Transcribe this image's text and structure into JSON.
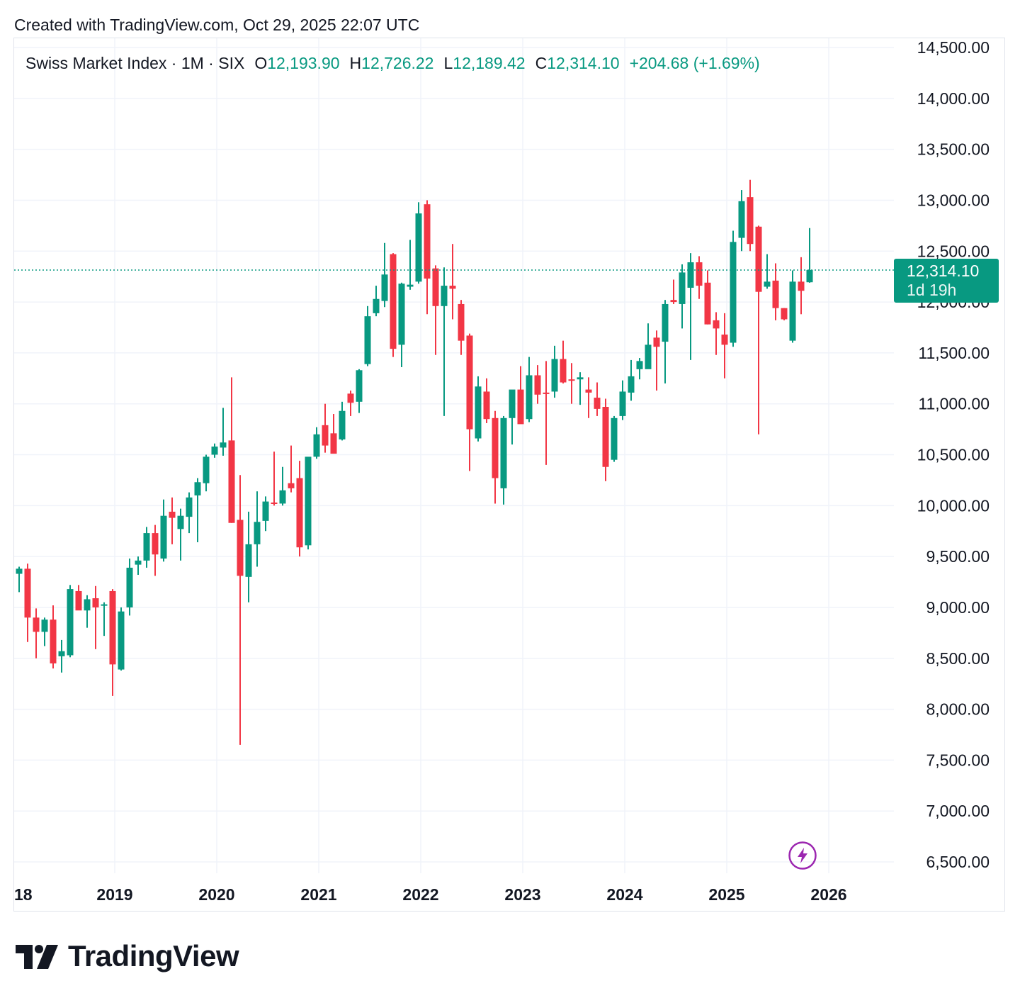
{
  "header": {
    "created_text": "Created with TradingView.com, Oct 29, 2025 22:07 UTC"
  },
  "legend": {
    "symbol": "Swiss Market Index · 1M · SIX",
    "open_label": "O",
    "open_value": "12,193.90",
    "high_label": "H",
    "high_value": "12,726.22",
    "low_label": "L",
    "low_value": "12,189.42",
    "close_label": "C",
    "close_value": "12,314.10",
    "change": "+204.68 (+1.69%)"
  },
  "price_badge": {
    "price": "12,314.10",
    "countdown": "1d 19h"
  },
  "branding": {
    "logo_text": "TradingView"
  },
  "icons": {
    "bolt": "lightning-bolt-icon",
    "logo": "tradingview-logo-icon"
  },
  "colors": {
    "up": "#089981",
    "down": "#f23645",
    "grid": "#f0f3fa",
    "accent": "#9c27b0"
  },
  "chart_data": {
    "type": "candlestick",
    "interval": "1M",
    "y_ticks": [
      "14,500.00",
      "14,000.00",
      "13,500.00",
      "13,000.00",
      "12,500.00",
      "12,000.00",
      "11,500.00",
      "11,000.00",
      "10,500.00",
      "10,000.00",
      "9,500.00",
      "9,000.00",
      "8,500.00",
      "8,000.00",
      "7,500.00",
      "7,000.00",
      "6,500.00"
    ],
    "y_tick_values": [
      14500,
      14000,
      13500,
      13000,
      12500,
      12000,
      11500,
      11000,
      10500,
      10000,
      9500,
      9000,
      8500,
      8000,
      7500,
      7000,
      6500
    ],
    "x_ticks": [
      "18",
      "2019",
      "2020",
      "2021",
      "2022",
      "2023",
      "2024",
      "2025",
      "2026"
    ],
    "ylim": [
      6500,
      14500
    ],
    "last_price": 12314.1,
    "candles": [
      {
        "o": 9330,
        "h": 9400,
        "l": 9150,
        "c": 9380
      },
      {
        "o": 9380,
        "h": 9430,
        "l": 8660,
        "c": 8900
      },
      {
        "o": 8900,
        "h": 8990,
        "l": 8500,
        "c": 8760
      },
      {
        "o": 8760,
        "h": 8900,
        "l": 8620,
        "c": 8880
      },
      {
        "o": 8880,
        "h": 9020,
        "l": 8400,
        "c": 8450
      },
      {
        "o": 8520,
        "h": 8680,
        "l": 8360,
        "c": 8570
      },
      {
        "o": 8530,
        "h": 9220,
        "l": 8510,
        "c": 9180
      },
      {
        "o": 9160,
        "h": 9220,
        "l": 9010,
        "c": 8970
      },
      {
        "o": 8970,
        "h": 9120,
        "l": 8800,
        "c": 9080
      },
      {
        "o": 9090,
        "h": 9210,
        "l": 8590,
        "c": 9000
      },
      {
        "o": 9020,
        "h": 9050,
        "l": 8720,
        "c": 9030
      },
      {
        "o": 9160,
        "h": 9180,
        "l": 8130,
        "c": 8440
      },
      {
        "o": 8390,
        "h": 9000,
        "l": 8380,
        "c": 8960
      },
      {
        "o": 9000,
        "h": 9480,
        "l": 8920,
        "c": 9390
      },
      {
        "o": 9420,
        "h": 9500,
        "l": 9320,
        "c": 9460
      },
      {
        "o": 9460,
        "h": 9790,
        "l": 9390,
        "c": 9730
      },
      {
        "o": 9730,
        "h": 9810,
        "l": 9310,
        "c": 9520
      },
      {
        "o": 9480,
        "h": 10060,
        "l": 9450,
        "c": 9900
      },
      {
        "o": 9940,
        "h": 10080,
        "l": 9620,
        "c": 9880
      },
      {
        "o": 9770,
        "h": 9970,
        "l": 9460,
        "c": 9900
      },
      {
        "o": 9890,
        "h": 10130,
        "l": 9730,
        "c": 10080
      },
      {
        "o": 10100,
        "h": 10270,
        "l": 9640,
        "c": 10230
      },
      {
        "o": 10220,
        "h": 10500,
        "l": 10140,
        "c": 10480
      },
      {
        "o": 10500,
        "h": 10610,
        "l": 10470,
        "c": 10580
      },
      {
        "o": 10570,
        "h": 10960,
        "l": 10490,
        "c": 10620
      },
      {
        "o": 10640,
        "h": 11260,
        "l": 9830,
        "c": 9830
      },
      {
        "o": 9860,
        "h": 10300,
        "l": 7650,
        "c": 9310
      },
      {
        "o": 9300,
        "h": 9940,
        "l": 9050,
        "c": 9620
      },
      {
        "o": 9620,
        "h": 10140,
        "l": 9400,
        "c": 9840
      },
      {
        "o": 9850,
        "h": 10090,
        "l": 9750,
        "c": 10040
      },
      {
        "o": 10030,
        "h": 10530,
        "l": 10000,
        "c": 10020
      },
      {
        "o": 10020,
        "h": 10380,
        "l": 10000,
        "c": 10150
      },
      {
        "o": 10220,
        "h": 10590,
        "l": 10130,
        "c": 10170
      },
      {
        "o": 10270,
        "h": 10440,
        "l": 9500,
        "c": 9590
      },
      {
        "o": 9610,
        "h": 10460,
        "l": 9570,
        "c": 10480
      },
      {
        "o": 10480,
        "h": 10770,
        "l": 10460,
        "c": 10700
      },
      {
        "o": 10790,
        "h": 11000,
        "l": 10520,
        "c": 10590
      },
      {
        "o": 10710,
        "h": 10900,
        "l": 10520,
        "c": 10510
      },
      {
        "o": 10650,
        "h": 11020,
        "l": 10640,
        "c": 10930
      },
      {
        "o": 11100,
        "h": 11130,
        "l": 10880,
        "c": 11010
      },
      {
        "o": 11020,
        "h": 11340,
        "l": 10910,
        "c": 11330
      },
      {
        "o": 11390,
        "h": 11960,
        "l": 11370,
        "c": 11860
      },
      {
        "o": 11890,
        "h": 12160,
        "l": 11860,
        "c": 12030
      },
      {
        "o": 12010,
        "h": 12580,
        "l": 11950,
        "c": 12270
      },
      {
        "o": 12470,
        "h": 12480,
        "l": 11460,
        "c": 11540
      },
      {
        "o": 11580,
        "h": 12190,
        "l": 11360,
        "c": 12180
      },
      {
        "o": 12150,
        "h": 12610,
        "l": 12120,
        "c": 12170
      },
      {
        "o": 12200,
        "h": 12980,
        "l": 12180,
        "c": 12870
      },
      {
        "o": 12960,
        "h": 13000,
        "l": 11880,
        "c": 12230
      },
      {
        "o": 12330,
        "h": 12360,
        "l": 11480,
        "c": 11960
      },
      {
        "o": 11960,
        "h": 12340,
        "l": 10880,
        "c": 12160
      },
      {
        "o": 12160,
        "h": 12570,
        "l": 11830,
        "c": 12130
      },
      {
        "o": 11980,
        "h": 12020,
        "l": 11480,
        "c": 11620
      },
      {
        "o": 11670,
        "h": 11690,
        "l": 10340,
        "c": 10750
      },
      {
        "o": 10660,
        "h": 11270,
        "l": 10630,
        "c": 11170
      },
      {
        "o": 11120,
        "h": 11250,
        "l": 10810,
        "c": 10850
      },
      {
        "o": 10860,
        "h": 10930,
        "l": 10020,
        "c": 10270
      },
      {
        "o": 10170,
        "h": 10880,
        "l": 10010,
        "c": 10860
      },
      {
        "o": 10860,
        "h": 11110,
        "l": 10600,
        "c": 11140
      },
      {
        "o": 11140,
        "h": 11370,
        "l": 10860,
        "c": 10800
      },
      {
        "o": 10850,
        "h": 11460,
        "l": 10820,
        "c": 11280
      },
      {
        "o": 11280,
        "h": 11380,
        "l": 11000,
        "c": 11090
      },
      {
        "o": 11110,
        "h": 11420,
        "l": 10400,
        "c": 11100
      },
      {
        "o": 11120,
        "h": 11570,
        "l": 11060,
        "c": 11440
      },
      {
        "o": 11440,
        "h": 11620,
        "l": 11200,
        "c": 11210
      },
      {
        "o": 11240,
        "h": 11400,
        "l": 11000,
        "c": 11230
      },
      {
        "o": 11240,
        "h": 11310,
        "l": 10990,
        "c": 11260
      },
      {
        "o": 11140,
        "h": 11260,
        "l": 10860,
        "c": 11110
      },
      {
        "o": 11060,
        "h": 11210,
        "l": 10880,
        "c": 10950
      },
      {
        "o": 10970,
        "h": 11050,
        "l": 10240,
        "c": 10380
      },
      {
        "o": 10450,
        "h": 10880,
        "l": 10430,
        "c": 10860
      },
      {
        "o": 10880,
        "h": 11230,
        "l": 10840,
        "c": 11120
      },
      {
        "o": 11110,
        "h": 11430,
        "l": 11030,
        "c": 11270
      },
      {
        "o": 11340,
        "h": 11450,
        "l": 11240,
        "c": 11420
      },
      {
        "o": 11340,
        "h": 11790,
        "l": 11350,
        "c": 11580
      },
      {
        "o": 11650,
        "h": 11720,
        "l": 11130,
        "c": 11560
      },
      {
        "o": 11610,
        "h": 12020,
        "l": 11200,
        "c": 11980
      },
      {
        "o": 12020,
        "h": 12220,
        "l": 11980,
        "c": 12000
      },
      {
        "o": 11980,
        "h": 12370,
        "l": 11740,
        "c": 12290
      },
      {
        "o": 12140,
        "h": 12480,
        "l": 11430,
        "c": 12390
      },
      {
        "o": 12390,
        "h": 12450,
        "l": 12030,
        "c": 12160
      },
      {
        "o": 12190,
        "h": 12310,
        "l": 11780,
        "c": 11780
      },
      {
        "o": 11820,
        "h": 11900,
        "l": 11480,
        "c": 11740
      },
      {
        "o": 11680,
        "h": 11890,
        "l": 11250,
        "c": 11580
      },
      {
        "o": 11600,
        "h": 12700,
        "l": 11560,
        "c": 12590
      },
      {
        "o": 12630,
        "h": 13100,
        "l": 12500,
        "c": 12990
      },
      {
        "o": 13030,
        "h": 13200,
        "l": 12500,
        "c": 12570
      },
      {
        "o": 12740,
        "h": 12750,
        "l": 10700,
        "c": 12100
      },
      {
        "o": 12150,
        "h": 12470,
        "l": 12130,
        "c": 12200
      },
      {
        "o": 12210,
        "h": 12380,
        "l": 11820,
        "c": 11940
      },
      {
        "o": 11940,
        "h": 11940,
        "l": 11820,
        "c": 11830
      },
      {
        "o": 11620,
        "h": 12310,
        "l": 11600,
        "c": 12200
      },
      {
        "o": 12200,
        "h": 12440,
        "l": 11880,
        "c": 12110
      },
      {
        "o": 12193.9,
        "h": 12726.22,
        "l": 12189.42,
        "c": 12314.1
      }
    ]
  }
}
